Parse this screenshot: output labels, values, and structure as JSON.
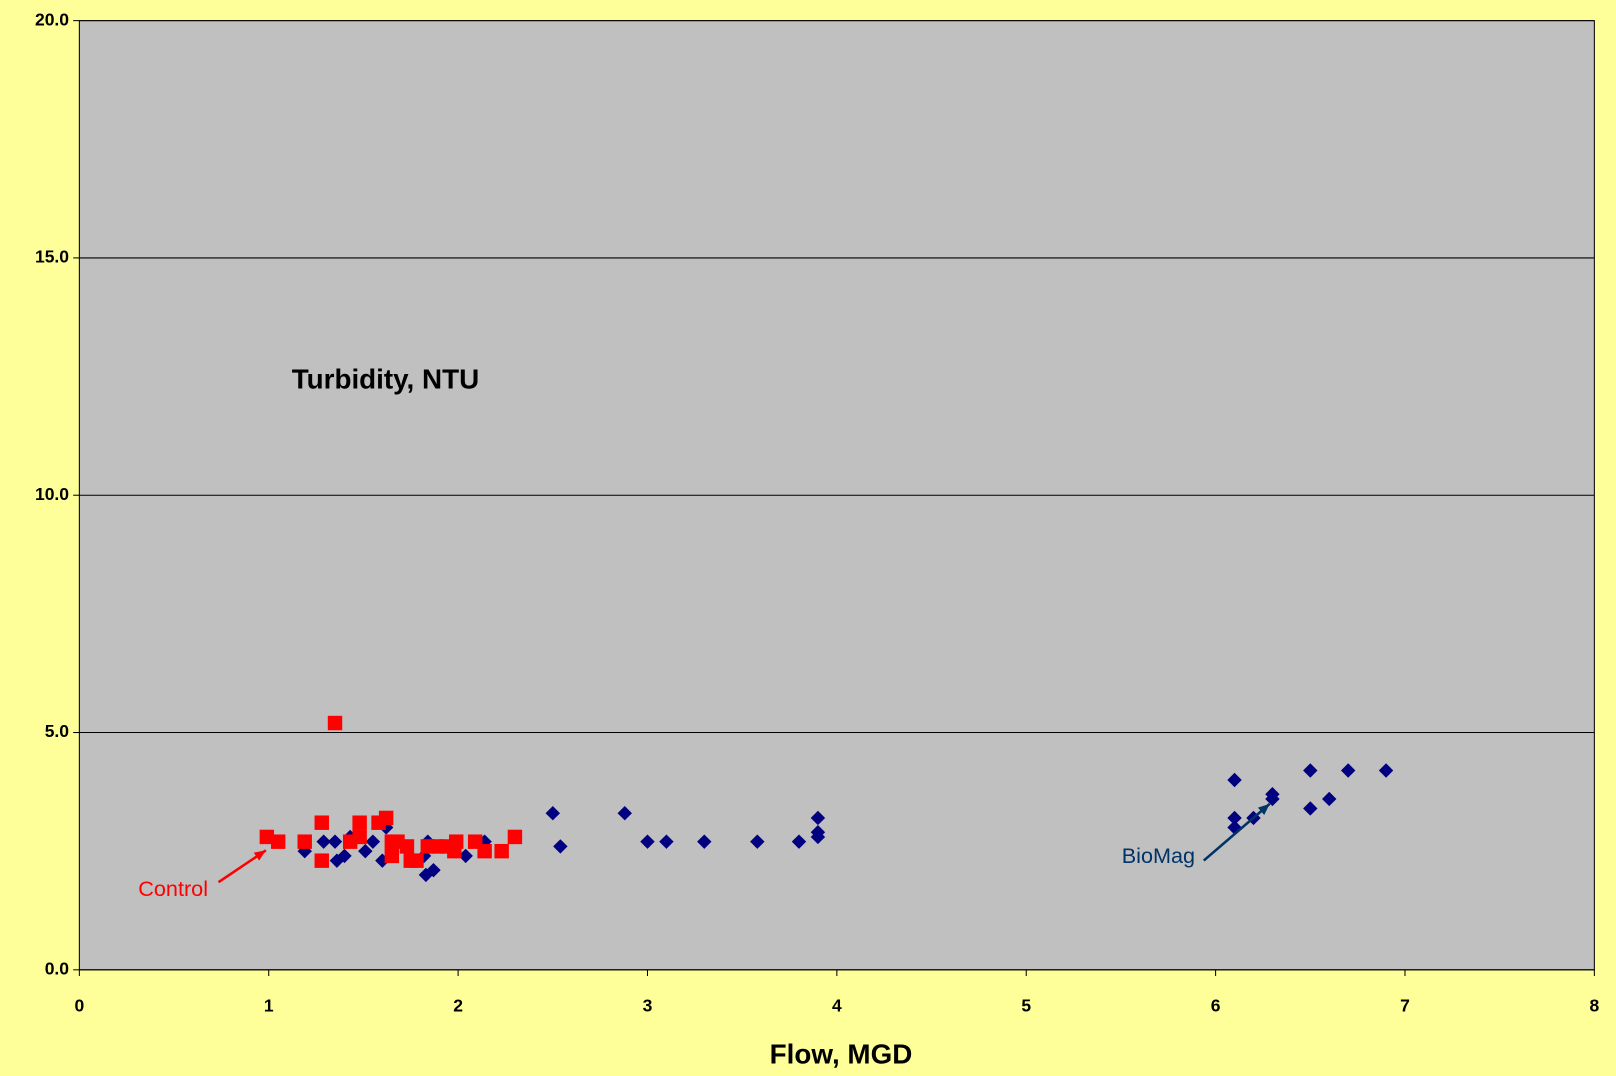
{
  "chart_data": {
    "type": "scatter",
    "ylabel": "Turbidity, NTU",
    "xlabel": "Flow, MGD",
    "xlim": [
      0,
      8
    ],
    "xticks": [
      0,
      1,
      2,
      3,
      4,
      5,
      6,
      7,
      8
    ],
    "ylim": [
      0,
      20
    ],
    "yticks": [
      {
        "value": 0,
        "label": "0.0"
      },
      {
        "value": 5,
        "label": "5.0"
      },
      {
        "value": 10,
        "label": "10.0"
      },
      {
        "value": 15,
        "label": "15.0"
      },
      {
        "value": 20,
        "label": "20.0"
      }
    ],
    "grid": true,
    "series": [
      {
        "name": "BioMag",
        "color": "#000080",
        "marker": "diamond",
        "x": [
          6.9,
          6.7,
          6.5,
          6.6,
          6.5,
          6.3,
          6.3,
          6.2,
          6.1,
          6.1,
          6.1,
          3.9,
          3.9,
          3.9,
          3.8,
          3.58,
          3.3,
          3.1,
          3.0,
          2.88,
          2.54,
          2.5,
          2.04,
          2.14,
          1.83,
          1.87,
          1.84,
          1.82,
          1.62,
          1.6,
          1.51,
          1.55,
          1.43,
          1.4,
          1.36,
          1.35,
          1.29,
          1.19,
          1.65
        ],
        "values": [
          4.2,
          4.2,
          4.2,
          3.6,
          3.4,
          3.7,
          3.6,
          3.2,
          4.0,
          3.2,
          3.0,
          3.2,
          2.9,
          2.8,
          2.7,
          2.7,
          2.7,
          2.7,
          2.7,
          3.3,
          2.6,
          3.3,
          2.4,
          2.7,
          2.0,
          2.1,
          2.7,
          2.4,
          3.0,
          2.3,
          2.5,
          2.7,
          2.8,
          2.4,
          2.3,
          2.7,
          2.7,
          2.5,
          2.5
        ]
      },
      {
        "name": "Control",
        "color": "#FF0000",
        "marker": "square",
        "x": [
          1.35,
          0.99,
          1.05,
          1.19,
          1.28,
          1.28,
          1.48,
          1.58,
          1.62,
          1.48,
          1.43,
          1.65,
          1.68,
          1.73,
          1.65,
          1.75,
          1.78,
          1.84,
          1.89,
          1.94,
          1.99,
          1.98,
          2.09,
          2.14,
          2.23,
          2.3
        ],
        "values": [
          5.2,
          2.8,
          2.7,
          2.7,
          3.1,
          2.3,
          3.1,
          3.1,
          3.2,
          2.8,
          2.7,
          2.7,
          2.7,
          2.6,
          2.4,
          2.3,
          2.3,
          2.6,
          2.6,
          2.6,
          2.7,
          2.5,
          2.7,
          2.5,
          2.5,
          2.8
        ]
      }
    ]
  }
}
